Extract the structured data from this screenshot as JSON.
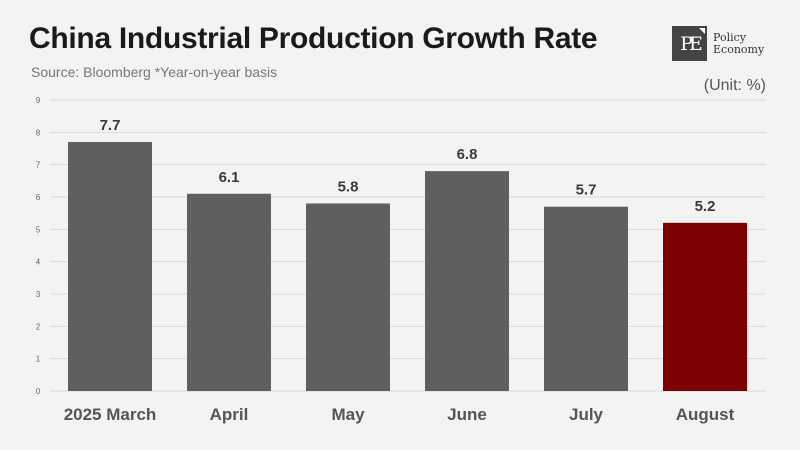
{
  "header": {
    "title": "China Industrial Production Growth Rate",
    "subtitle": "Source: Bloomberg *Year-on-year basis",
    "unit": "(Unit: %)"
  },
  "logo": {
    "mark": "PE",
    "line1": "Policy",
    "line2": "Economy"
  },
  "chart_data": {
    "type": "bar",
    "title": "China Industrial Production Growth Rate",
    "subtitle": "Source: Bloomberg *Year-on-year basis",
    "xlabel": "",
    "ylabel": "(Unit: %)",
    "categories": [
      "2025 March",
      "April",
      "May",
      "June",
      "July",
      "August"
    ],
    "values": [
      7.7,
      6.1,
      5.8,
      6.8,
      5.7,
      5.2
    ],
    "data_labels": [
      "7.7",
      "6.1",
      "5.8",
      "6.8",
      "5.7",
      "5.2"
    ],
    "ylim": [
      0,
      9
    ],
    "yticks": [
      0,
      1,
      2,
      3,
      4,
      5,
      6,
      7,
      8,
      9
    ],
    "grid": true,
    "legend": "none",
    "colors": {
      "default": "#5f5f5f",
      "highlight": "#7d0000"
    },
    "highlight_index": 5
  }
}
